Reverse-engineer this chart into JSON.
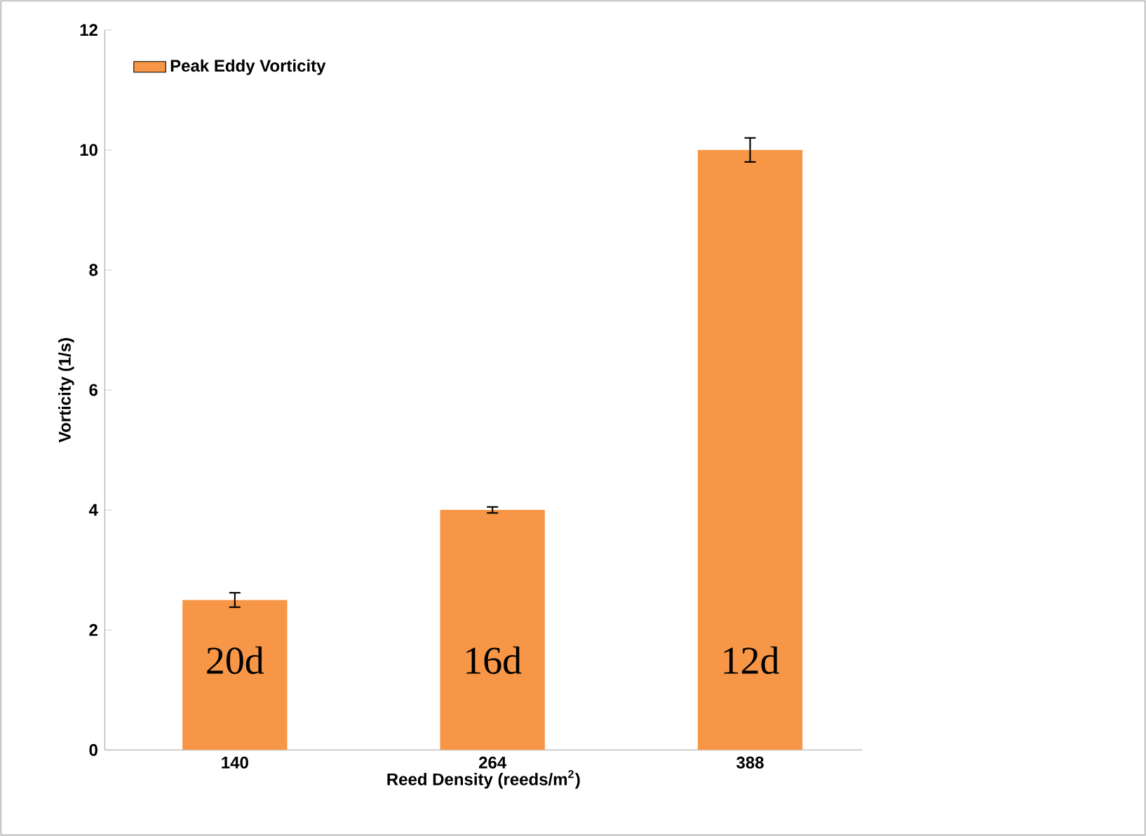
{
  "chart_data": {
    "type": "bar",
    "xlabel": "Reed Density (reeds/m$^{2}$)",
    "ylabel": "Vorticity (1/s)",
    "categories": [
      "140",
      "264",
      "388"
    ],
    "series": [
      {
        "name": "Peak Eddy Vorticity",
        "color": "#f79646",
        "values": [
          2.5,
          4.0,
          10.0
        ],
        "errors": [
          0.12,
          0.05,
          0.2
        ]
      }
    ],
    "ylim": [
      0,
      12
    ],
    "yticks": [
      0,
      2,
      4,
      6,
      8,
      10,
      12
    ],
    "grid": false,
    "legend": "top left",
    "annotations": [
      "20d",
      "16d",
      "12d"
    ]
  }
}
